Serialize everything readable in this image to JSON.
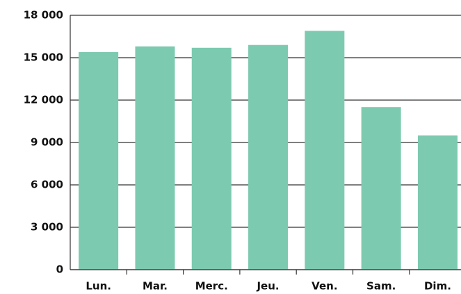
{
  "chart_data": {
    "type": "bar",
    "categories": [
      "Lun.",
      "Mar.",
      "Merc.",
      "Jeu.",
      "Ven.",
      "Sam.",
      "Dim."
    ],
    "values": [
      15400,
      15800,
      15700,
      15900,
      16900,
      11500,
      9500
    ],
    "color": "#7ccaaf",
    "ylim": [
      0,
      18000
    ],
    "yticks": [
      0,
      {
        "value": 3000,
        "label": "3 000"
      },
      {
        "value": 6000,
        "label": "6 000"
      },
      {
        "value": 9000,
        "label": "9 000"
      },
      {
        "value": 12000,
        "label": "12 000"
      },
      {
        "value": 15000,
        "label": "15 000"
      },
      {
        "value": 18000,
        "label": "18 000"
      }
    ],
    "grid": true
  }
}
